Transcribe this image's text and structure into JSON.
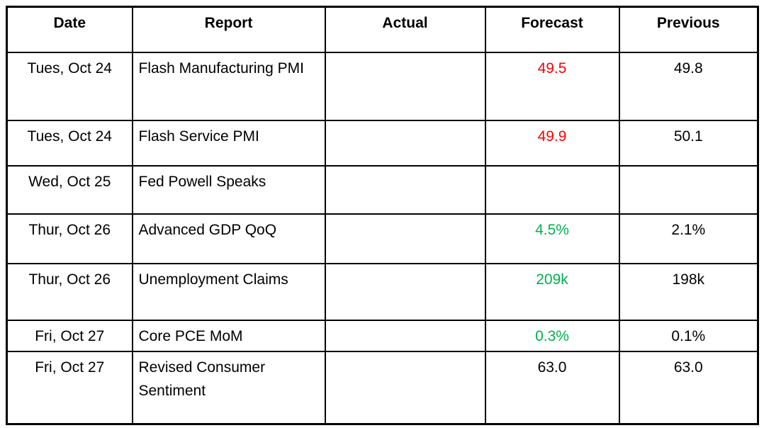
{
  "colors": {
    "red": "#ff0000",
    "green": "#00b050",
    "text": "#000000",
    "border": "#000000",
    "background": "#ffffff"
  },
  "table": {
    "columns": [
      {
        "key": "date",
        "label": "Date"
      },
      {
        "key": "report",
        "label": "Report"
      },
      {
        "key": "actual",
        "label": "Actual"
      },
      {
        "key": "forecast",
        "label": "Forecast"
      },
      {
        "key": "previous",
        "label": "Previous"
      }
    ],
    "rows": [
      {
        "date": "Tues, Oct 24",
        "report": "Flash Manufacturing PMI",
        "actual": "",
        "forecast": "49.5",
        "forecast_color": "red",
        "previous": "49.8"
      },
      {
        "date": "Tues, Oct 24",
        "report": "Flash Service PMI",
        "actual": "",
        "forecast": "49.9",
        "forecast_color": "red",
        "previous": "50.1"
      },
      {
        "date": "Wed, Oct 25",
        "report": "Fed Powell Speaks",
        "actual": "",
        "forecast": "",
        "forecast_color": null,
        "previous": ""
      },
      {
        "date": "Thur, Oct 26",
        "report": "Advanced GDP QoQ",
        "actual": "",
        "forecast": "4.5%",
        "forecast_color": "green",
        "previous": "2.1%"
      },
      {
        "date": "Thur, Oct 26",
        "report": "Unemployment Claims",
        "actual": "",
        "forecast": "209k",
        "forecast_color": "green",
        "previous": "198k"
      },
      {
        "date": "Fri, Oct 27",
        "report": "Core PCE MoM",
        "actual": "",
        "forecast": "0.3%",
        "forecast_color": "green",
        "previous": "0.1%"
      },
      {
        "date": "Fri, Oct 27",
        "report": "Revised Consumer Sentiment",
        "actual": "",
        "forecast": "63.0",
        "forecast_color": null,
        "previous": "63.0"
      }
    ]
  }
}
